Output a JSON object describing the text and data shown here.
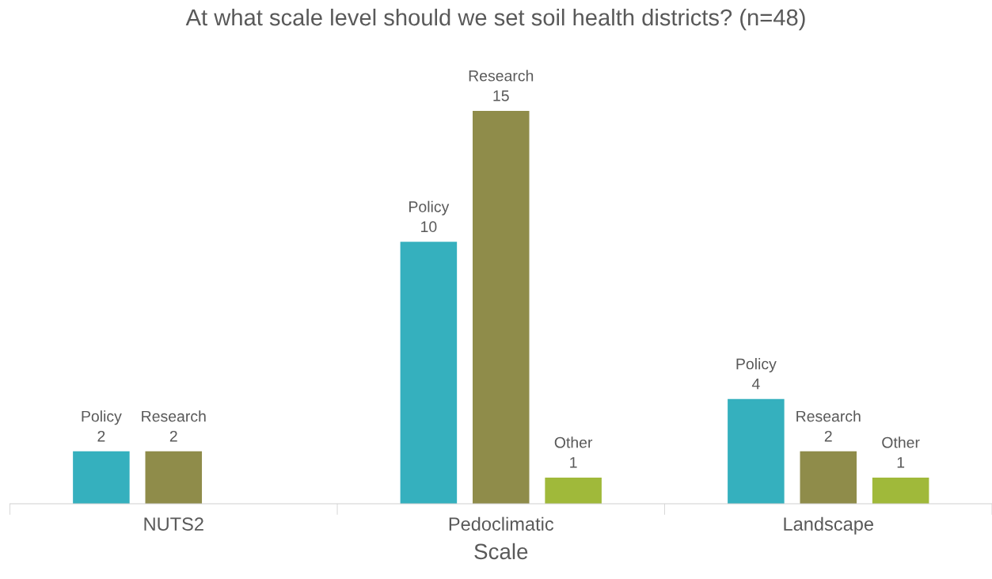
{
  "chart_data": {
    "type": "bar",
    "title": "At what scale level should we set soil health districts? (n=48)",
    "xlabel": "Scale",
    "categories": [
      "NUTS2",
      "Pedoclimatic",
      "Landscape"
    ],
    "series": [
      {
        "name": "Policy",
        "color": "#35b0be",
        "values": [
          2,
          10,
          4
        ]
      },
      {
        "name": "Research",
        "color": "#8f8c4a",
        "values": [
          2,
          15,
          2
        ]
      },
      {
        "name": "Other",
        "color": "#a0b93a",
        "values": [
          null,
          1,
          1
        ]
      }
    ],
    "data_labels": true,
    "legend": false,
    "grid": false
  }
}
